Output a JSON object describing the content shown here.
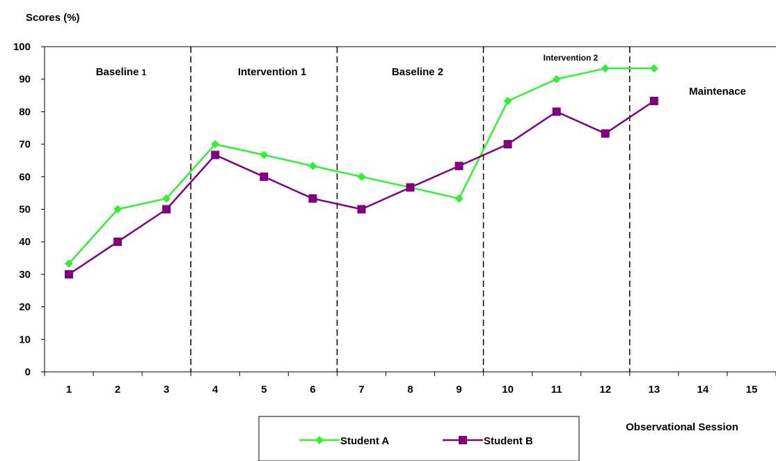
{
  "chart_data": {
    "type": "line",
    "ylabel": "Scores (%)",
    "xlabel": "Observational Session",
    "x": [
      1,
      2,
      3,
      4,
      5,
      6,
      7,
      8,
      9,
      10,
      11,
      12,
      13,
      14,
      15
    ],
    "ylim": [
      0,
      100
    ],
    "yticks": [
      0,
      10,
      20,
      30,
      40,
      50,
      60,
      70,
      80,
      90,
      100
    ],
    "grid": false,
    "legend_position": "bottom-center",
    "series": [
      {
        "name": "Student A",
        "color": "#33ee33",
        "marker": "diamond",
        "x": [
          1,
          2,
          3,
          4,
          5,
          6,
          7,
          8,
          9,
          10,
          11,
          12,
          13
        ],
        "values": [
          33.3,
          50,
          53.3,
          70,
          66.7,
          63.3,
          60,
          56.7,
          53.3,
          83.3,
          90,
          93.3,
          93.3
        ]
      },
      {
        "name": "Student B",
        "color": "#800080",
        "marker": "square",
        "x": [
          1,
          2,
          3,
          4,
          5,
          6,
          7,
          8,
          9,
          10,
          11,
          12,
          13
        ],
        "values": [
          30,
          40,
          50,
          66.7,
          60,
          53.3,
          50,
          56.7,
          63.3,
          70,
          80,
          73.3,
          83.3
        ]
      }
    ],
    "phase_boundaries": [
      3.5,
      6.5,
      9.5,
      12.5
    ],
    "phases": [
      {
        "label": "Baseline ",
        "sub": "1"
      },
      {
        "label": "Intervention 1"
      },
      {
        "label": "Baseline 2"
      },
      {
        "label": "Intervention 2"
      },
      {
        "label": "Maintenace"
      }
    ]
  }
}
